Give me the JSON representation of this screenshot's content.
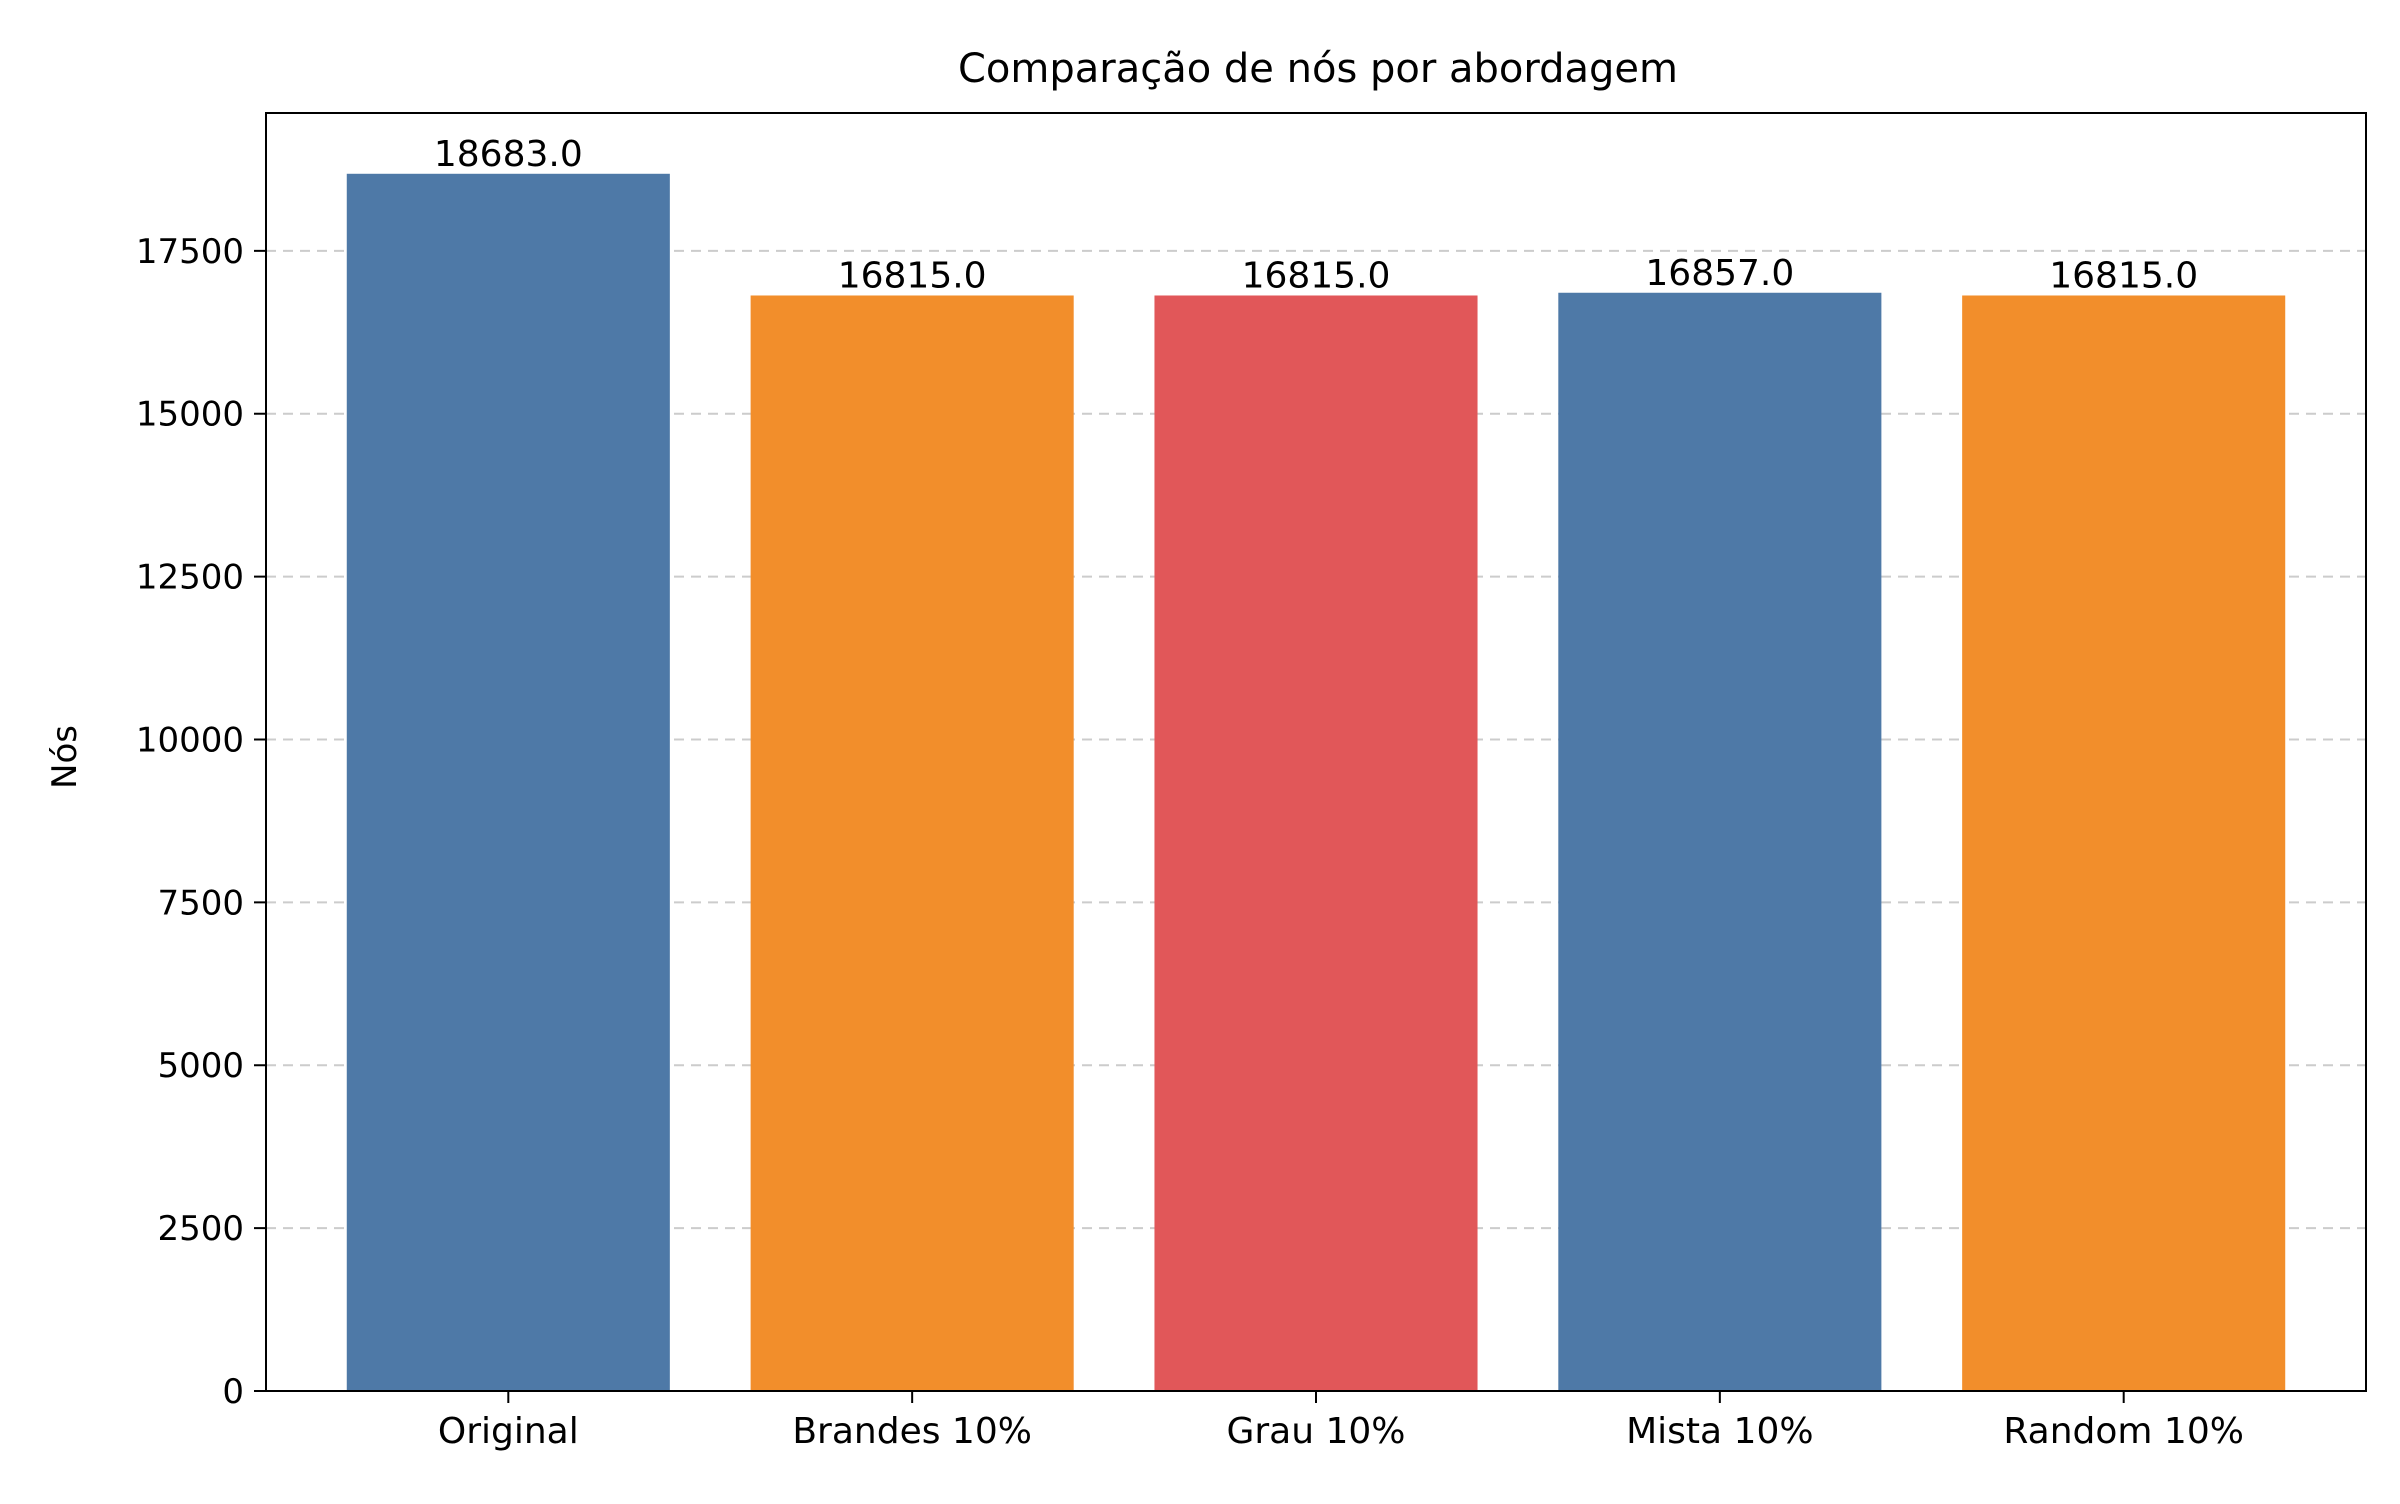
{
  "chart_data": {
    "type": "bar",
    "title": "Comparação de nós por abordagem",
    "xlabel": "",
    "ylabel": "Nós",
    "categories": [
      "Original",
      "Brandes 10%",
      "Grau 10%",
      "Mista 10%",
      "Random 10%"
    ],
    "values": [
      18683.0,
      16815.0,
      16815.0,
      16857.0,
      16815.0
    ],
    "data_labels": [
      "18683.0",
      "16815.0",
      "16815.0",
      "16857.0",
      "16815.0"
    ],
    "bar_colors": [
      "#4e79a7",
      "#f28e2b",
      "#e15759",
      "#4e79a7",
      "#f28e2b"
    ],
    "ylim": [
      0,
      19616
    ],
    "yticks": [
      0,
      2500,
      5000,
      7500,
      10000,
      12500,
      15000,
      17500
    ],
    "ytick_labels": [
      "0",
      "2500",
      "5000",
      "7500",
      "10000",
      "12500",
      "15000",
      "17500"
    ],
    "grid": "y-dashed",
    "legend": "none"
  }
}
